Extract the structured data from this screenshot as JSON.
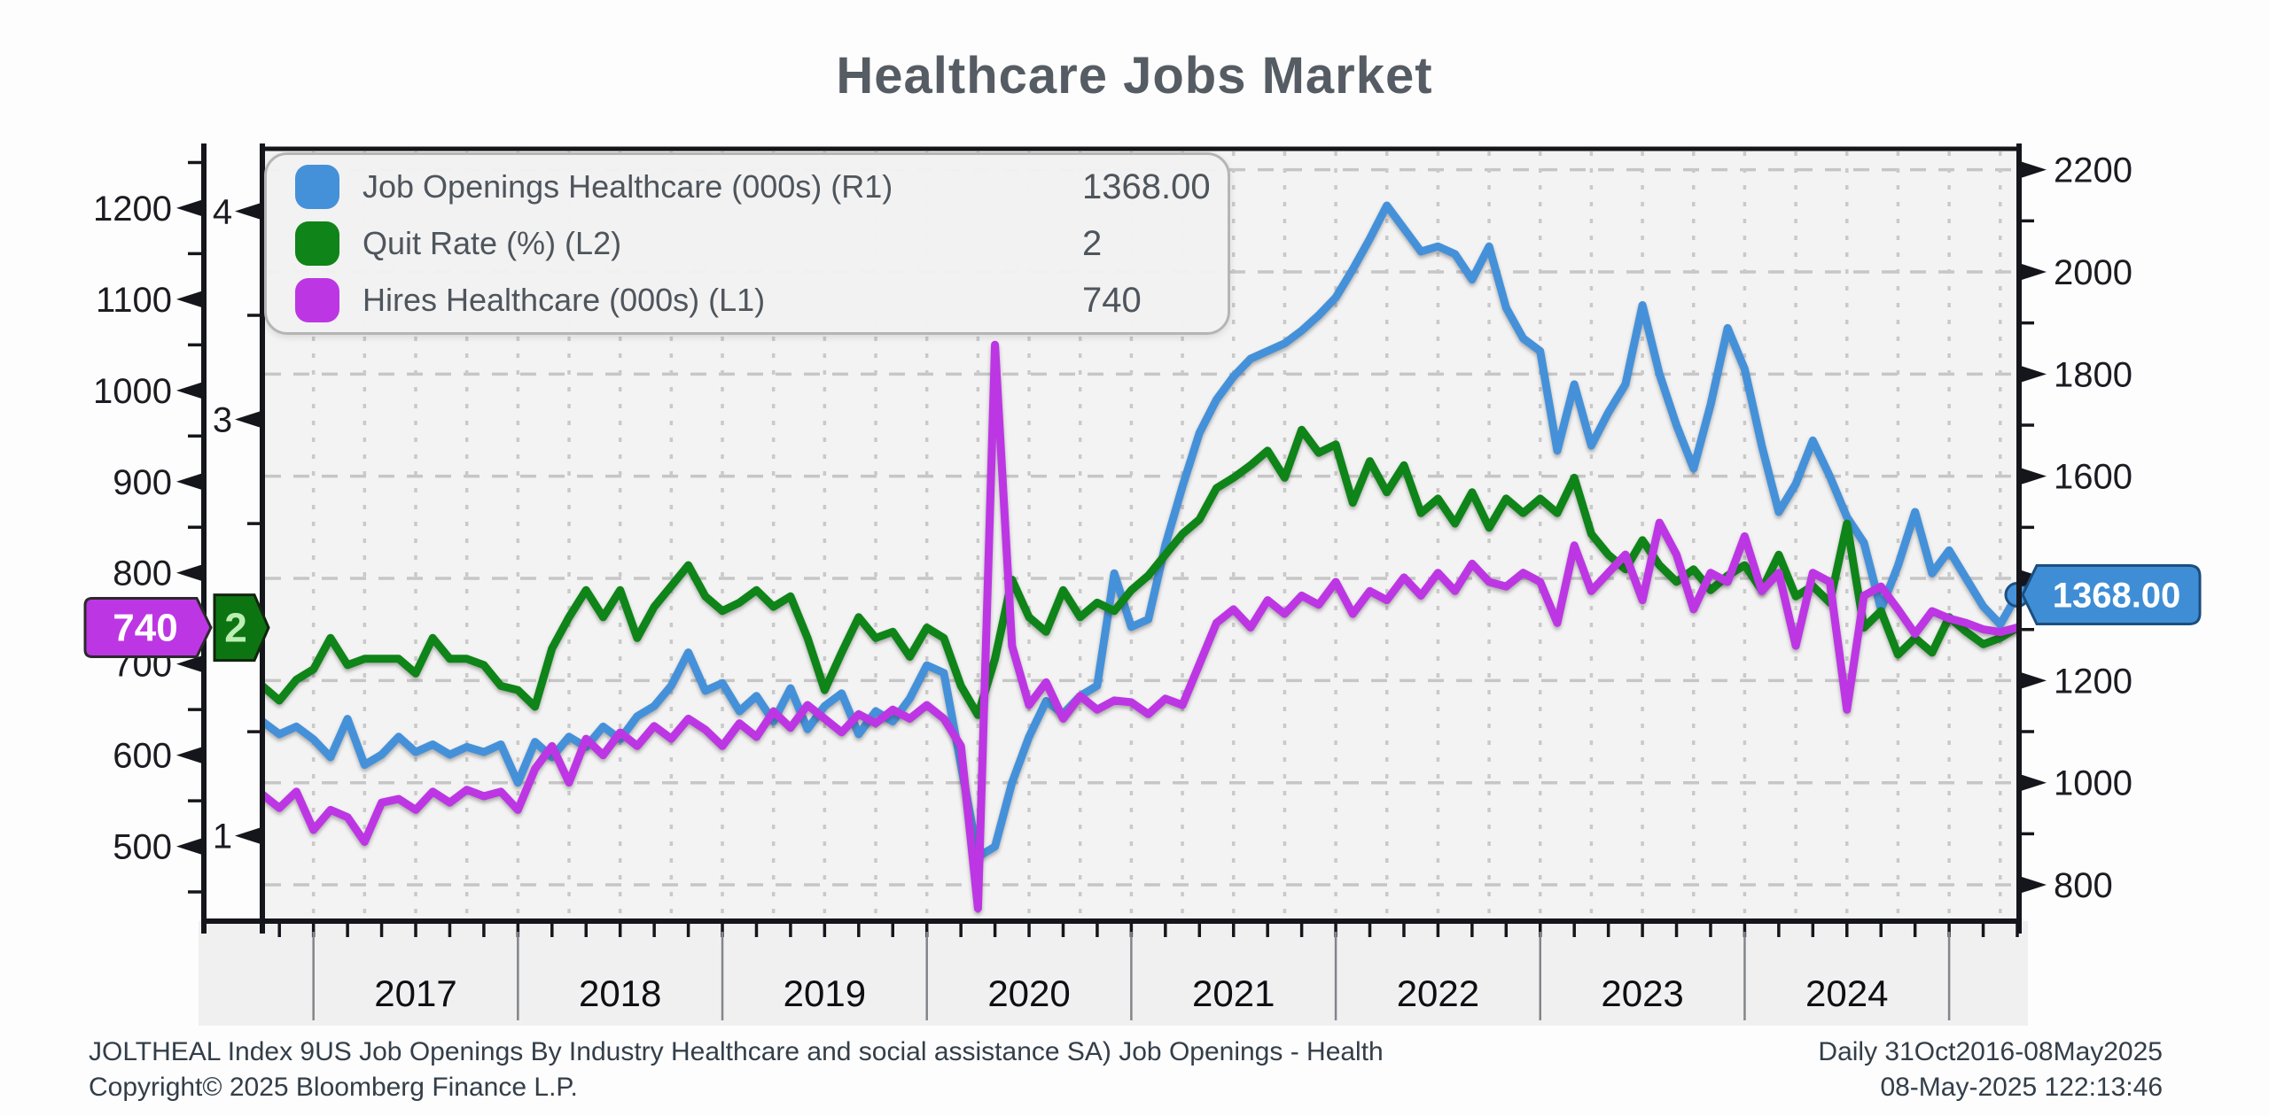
{
  "title": {
    "text": "Healthcare Jobs Market"
  },
  "legend": {
    "items": [
      {
        "label": "Job Openings Healthcare (000s) (R1)",
        "value": "1368.00",
        "color": "#4591d9"
      },
      {
        "label": "Quit Rate (%) (L2)",
        "value": "2",
        "color": "#0f8418"
      },
      {
        "label": "Hires Healthcare (000s) (L1)",
        "value": "740",
        "color": "#bd36e4"
      }
    ]
  },
  "axis_tags": {
    "hires": {
      "text": "740",
      "fill": "#bd36e4",
      "text_color": "#ffffff",
      "border": "#2a2a2a"
    },
    "quit": {
      "text": "2",
      "fill": "#0c7512",
      "text_color": "#bdeeb4",
      "border": "#12240f"
    },
    "openings": {
      "text": "1368.00",
      "fill": "#3f8ed5",
      "text_color": "#ffffff",
      "border": "#1c4e7e"
    }
  },
  "footer": {
    "left_line1": "JOLTHEAL Index 9US Job Openings By Industry Healthcare and social assistance SA) Job Openings - Health",
    "left_line2": "Copyright© 2025 Bloomberg Finance L.P.",
    "right_line1": "Daily 31Oct2016-08May2025",
    "right_line2": "08-May-2025 122:13:46"
  },
  "chart_data": {
    "type": "line",
    "title": "Healthcare Jobs Market",
    "frequency": "monthly",
    "x_start": "Oct 2016",
    "x_end": "May 2025",
    "x_year_labels": [
      "2017",
      "2018",
      "2019",
      "2020",
      "2021",
      "2022",
      "2023",
      "2024"
    ],
    "grid": {
      "horizontal": "R1 major ticks, dashed",
      "vertical": "quarterly, dashed"
    },
    "axes": {
      "L1": {
        "label": "Hires Healthcare (000s)",
        "side": "outer-left",
        "ticks": [
          500,
          600,
          700,
          800,
          900,
          1000,
          1100,
          1200
        ],
        "minor_step": 50,
        "ylim": [
          418,
          1265
        ]
      },
      "L2": {
        "label": "Quit Rate (%)",
        "side": "inner-left",
        "ticks": [
          1,
          2,
          3,
          4
        ],
        "minor_step": 0.5,
        "ylim": [
          0.59,
          4.3
        ]
      },
      "R1": {
        "label": "Job Openings Healthcare (000s)",
        "side": "right",
        "ticks": [
          800,
          1000,
          1200,
          1400,
          1600,
          1800,
          2000,
          2200
        ],
        "minor_step": 100,
        "ylim": [
          729,
          2241
        ]
      }
    },
    "series": [
      {
        "name": "Job Openings Healthcare (000s)",
        "axis": "R1",
        "color": "#4591d9",
        "last_value": 1368.0,
        "end_dot": true,
        "values": [
          1120,
          1095,
          1110,
          1085,
          1050,
          1125,
          1035,
          1055,
          1090,
          1060,
          1075,
          1055,
          1070,
          1060,
          1075,
          1000,
          1080,
          1050,
          1090,
          1070,
          1110,
          1085,
          1130,
          1150,
          1190,
          1255,
          1180,
          1195,
          1140,
          1170,
          1120,
          1185,
          1105,
          1150,
          1175,
          1095,
          1140,
          1120,
          1165,
          1230,
          1215,
          1035,
          855,
          875,
          1000,
          1090,
          1160,
          1135,
          1170,
          1190,
          1410,
          1305,
          1320,
          1465,
          1580,
          1685,
          1750,
          1795,
          1830,
          1845,
          1860,
          1885,
          1915,
          1950,
          2005,
          2065,
          2130,
          2085,
          2040,
          2050,
          2035,
          1985,
          2050,
          1930,
          1870,
          1845,
          1650,
          1780,
          1660,
          1725,
          1780,
          1935,
          1800,
          1700,
          1615,
          1740,
          1890,
          1810,
          1660,
          1530,
          1585,
          1670,
          1600,
          1520,
          1470,
          1340,
          1425,
          1530,
          1410,
          1455,
          1400,
          1345,
          1310,
          1368
        ]
      },
      {
        "name": "Quit Rate (%)",
        "axis": "L2",
        "color": "#0f8418",
        "last_value": 2,
        "end_dot": false,
        "values": [
          1.72,
          1.65,
          1.75,
          1.8,
          1.95,
          1.82,
          1.85,
          1.85,
          1.85,
          1.78,
          1.95,
          1.85,
          1.85,
          1.82,
          1.72,
          1.7,
          1.62,
          1.9,
          2.05,
          2.18,
          2.05,
          2.18,
          1.95,
          2.1,
          2.2,
          2.3,
          2.15,
          2.08,
          2.12,
          2.18,
          2.1,
          2.15,
          1.95,
          1.7,
          1.88,
          2.05,
          1.95,
          1.98,
          1.86,
          2.0,
          1.95,
          1.72,
          1.58,
          1.85,
          2.23,
          2.05,
          1.98,
          2.18,
          2.05,
          2.12,
          2.08,
          2.18,
          2.25,
          2.35,
          2.45,
          2.52,
          2.67,
          2.72,
          2.78,
          2.85,
          2.72,
          2.95,
          2.84,
          2.88,
          2.6,
          2.8,
          2.65,
          2.78,
          2.55,
          2.62,
          2.5,
          2.65,
          2.48,
          2.62,
          2.55,
          2.62,
          2.55,
          2.72,
          2.45,
          2.35,
          2.28,
          2.42,
          2.3,
          2.22,
          2.28,
          2.18,
          2.25,
          2.3,
          2.18,
          2.35,
          2.15,
          2.2,
          2.12,
          2.5,
          2.0,
          2.08,
          1.87,
          1.95,
          1.88,
          2.05,
          1.98,
          1.92,
          1.95,
          2.0
        ]
      },
      {
        "name": "Hires Healthcare (000s)",
        "axis": "L1",
        "color": "#bd36e4",
        "last_value": 740,
        "end_dot": false,
        "values": [
          557,
          542,
          560,
          518,
          540,
          532,
          505,
          548,
          552,
          540,
          560,
          548,
          562,
          555,
          560,
          540,
          585,
          610,
          570,
          618,
          600,
          625,
          610,
          632,
          618,
          640,
          628,
          610,
          635,
          620,
          648,
          630,
          655,
          640,
          625,
          645,
          635,
          650,
          640,
          655,
          640,
          610,
          432,
          1050,
          720,
          655,
          680,
          640,
          665,
          650,
          660,
          658,
          645,
          662,
          655,
          700,
          745,
          760,
          740,
          770,
          755,
          775,
          765,
          790,
          755,
          780,
          770,
          795,
          775,
          800,
          780,
          810,
          790,
          785,
          800,
          790,
          745,
          830,
          780,
          800,
          820,
          770,
          855,
          820,
          760,
          800,
          790,
          840,
          780,
          800,
          720,
          800,
          790,
          650,
          775,
          785,
          760,
          733,
          758,
          750,
          745,
          738,
          735,
          740
        ]
      }
    ]
  }
}
